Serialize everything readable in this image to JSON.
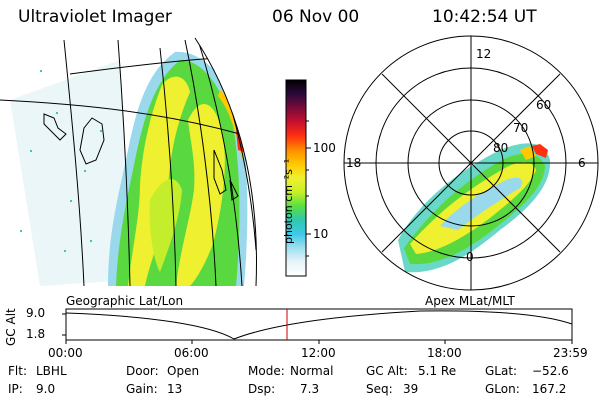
{
  "header": {
    "instrument": "Ultraviolet Imager",
    "date": "06 Nov 00",
    "time": "10:42:54 UT"
  },
  "colorbar": {
    "unit_label": "photon cm⁻²s⁻¹",
    "ticks": [
      "100",
      "10"
    ],
    "colors": [
      "#000000",
      "#2a0a3a",
      "#7a0a3a",
      "#c8102e",
      "#ff3010",
      "#ff8c00",
      "#ffc800",
      "#f0f030",
      "#c8f028",
      "#5ae040",
      "#30c8b0",
      "#40c8e8",
      "#a0e0f0",
      "#e8f4f8",
      "#ffffff"
    ]
  },
  "geo_panel": {
    "label": "Geographic Lat/Lon"
  },
  "polar_panel": {
    "label": "Apex MLat/MLT",
    "mlt_labels": {
      "top": "12",
      "left": "18",
      "right": "6",
      "bottom": "0"
    },
    "lat_labels": [
      "60",
      "70",
      "80"
    ]
  },
  "altitude_plot": {
    "ylabel": "GC Alt",
    "yticks": [
      "9.0",
      "1.8"
    ],
    "xticks": [
      "00:00",
      "06:00",
      "12:00",
      "18:00",
      "23:59"
    ],
    "cursor_time": "10:42:54",
    "cursor_color": "#cc0000"
  },
  "status": {
    "flt_label": "Flt:",
    "flt_value": "LBHL",
    "ip_label": "IP:",
    "ip_value": "9.0",
    "door_label": "Door:",
    "door_value": "Open",
    "gain_label": "Gain:",
    "gain_value": "13",
    "mode_label": "Mode:",
    "mode_value": "Normal",
    "dsp_label": "Dsp:",
    "dsp_value": "7.3",
    "gcalt_label": "GC Alt:",
    "gcalt_value": "5.1 Re",
    "seq_label": "Seq:",
    "seq_value": "39",
    "glat_label": "GLat:",
    "glat_value": "−52.6",
    "glon_label": "GLon:",
    "glon_value": "167.2"
  }
}
